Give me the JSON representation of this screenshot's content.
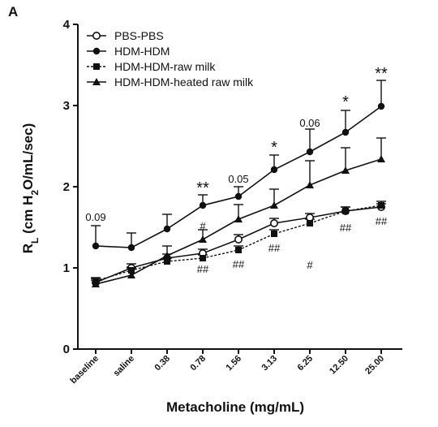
{
  "panel_label": "A",
  "chart_data": {
    "type": "line",
    "xlabel": "Metacholine (mg/mL)",
    "ylabel": {
      "main": "R",
      "sub_l": "L",
      "rest1": " (cm H",
      "sub_2": "2",
      "rest2": "O/mL/sec)"
    },
    "ylim": [
      0,
      4
    ],
    "yticks": [
      "0",
      "1",
      "2",
      "3",
      "4"
    ],
    "categories": [
      "baseline",
      "saline",
      "0.38",
      "0.78",
      "1.56",
      "3.13",
      "6.25",
      "12.50",
      "25.00"
    ],
    "legend_position": "top-left",
    "grid": false,
    "series": [
      {
        "name": "PBS-PBS",
        "marker": "open-circle",
        "line": "solid",
        "values": [
          0.82,
          1.0,
          1.12,
          1.18,
          1.35,
          1.55,
          1.62,
          1.7,
          1.75
        ],
        "errors": [
          0.05,
          0.05,
          0.05,
          0.05,
          0.06,
          0.06,
          0.05,
          0.05,
          0.04
        ]
      },
      {
        "name": "HDM-HDM",
        "marker": "filled-circle",
        "line": "solid",
        "values": [
          1.27,
          1.25,
          1.48,
          1.77,
          1.88,
          2.21,
          2.43,
          2.67,
          2.99
        ],
        "errors": [
          0.25,
          0.18,
          0.18,
          0.13,
          0.12,
          0.18,
          0.28,
          0.27,
          0.32
        ]
      },
      {
        "name": "HDM-HDM-raw milk",
        "marker": "filled-square",
        "line": "dotted",
        "values": [
          0.84,
          0.97,
          1.08,
          1.12,
          1.22,
          1.42,
          1.55,
          1.7,
          1.77
        ],
        "errors": [
          0.04,
          0.04,
          0.04,
          0.04,
          0.05,
          0.05,
          0.05,
          0.05,
          0.05
        ]
      },
      {
        "name": "HDM-HDM-heated raw milk",
        "marker": "filled-triangle",
        "line": "solid",
        "values": [
          0.8,
          0.91,
          1.15,
          1.35,
          1.6,
          1.77,
          2.02,
          2.2,
          2.34
        ],
        "errors": [
          0.05,
          0.09,
          0.12,
          0.12,
          0.18,
          0.2,
          0.3,
          0.28,
          0.26
        ]
      }
    ],
    "annotations": [
      {
        "text": "0.09",
        "category": "baseline",
        "y": 1.58,
        "style": "value"
      },
      {
        "text": "**",
        "category": "0.78",
        "y": 1.92,
        "style": "star"
      },
      {
        "text": "0.05",
        "category": "1.56",
        "y": 2.05,
        "style": "value"
      },
      {
        "text": "*",
        "category": "3.13",
        "y": 2.42,
        "style": "star"
      },
      {
        "text": "0.06",
        "category": "6.25",
        "y": 2.74,
        "style": "value"
      },
      {
        "text": "*",
        "category": "12.50",
        "y": 2.98,
        "style": "star"
      },
      {
        "text": "**",
        "category": "25.00",
        "y": 3.33,
        "style": "star"
      },
      {
        "text": "#",
        "category": "0.78",
        "y": 1.47,
        "style": "value"
      },
      {
        "text": "##",
        "category": "0.78",
        "y": 0.94,
        "style": "value"
      },
      {
        "text": "##",
        "category": "1.56",
        "y": 1.0,
        "style": "value"
      },
      {
        "text": "##",
        "category": "3.13",
        "y": 1.2,
        "style": "value"
      },
      {
        "text": "#",
        "category": "6.25",
        "y": 0.99,
        "style": "value"
      },
      {
        "text": "##",
        "category": "12.50",
        "y": 1.45,
        "style": "value"
      },
      {
        "text": "##",
        "category": "25.00",
        "y": 1.53,
        "style": "value"
      }
    ]
  }
}
